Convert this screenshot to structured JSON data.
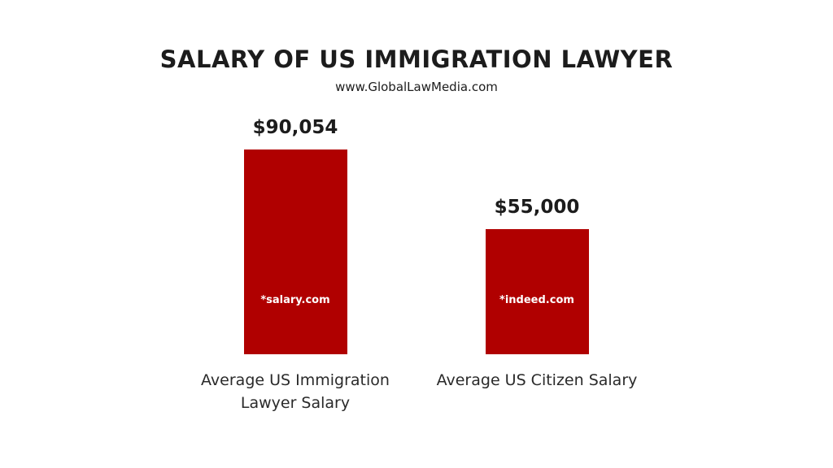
{
  "chart_data": {
    "type": "bar",
    "title": "SALARY OF US IMMIGRATION LAWYER",
    "subtitle": "www.GlobalLawMedia.com",
    "categories": [
      "Average US Immigration Lawyer Salary",
      "Average US Citizen Salary"
    ],
    "values": [
      90054,
      55000
    ],
    "value_labels": [
      "$90,054",
      "$55,000"
    ],
    "annotations": [
      "*salary.com",
      "*indeed.com"
    ],
    "color": "#b00000"
  }
}
